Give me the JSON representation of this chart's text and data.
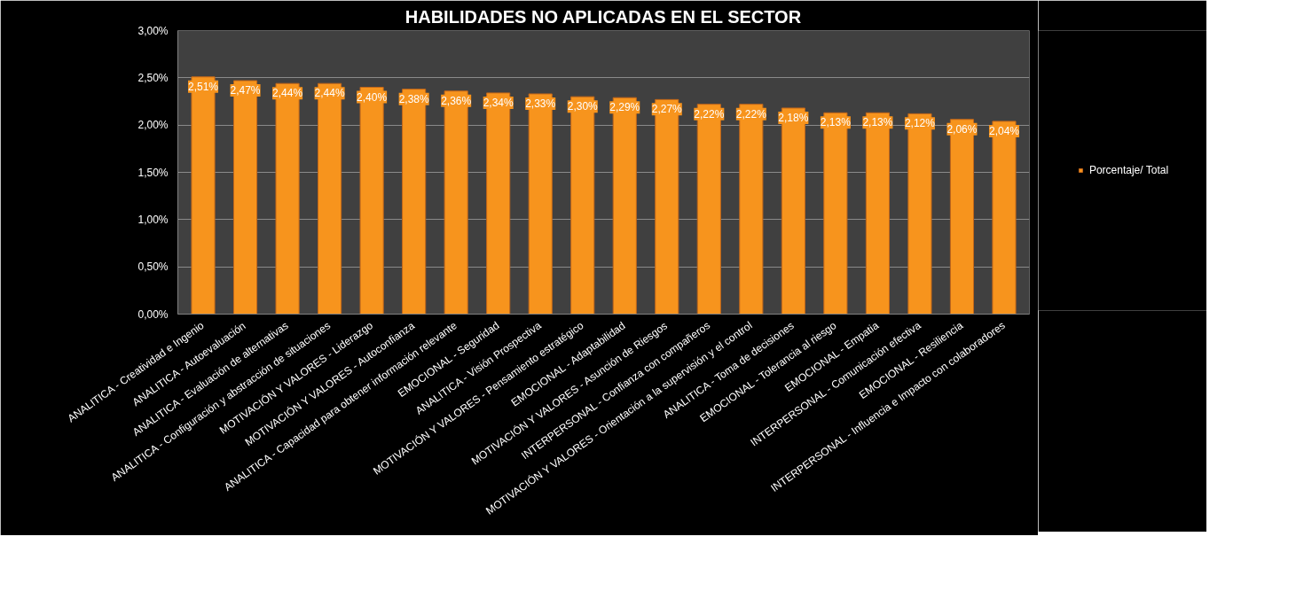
{
  "chart_data": {
    "type": "bar",
    "title": "HABILIDADES NO APLICADAS EN EL SECTOR",
    "categories": [
      "ANALITICA - Creatividad e Ingenio",
      "ANALITICA - Autoevaluación",
      "ANALITICA - Evaluación de alternativas",
      "ANALITICA - Configuración y abstracción de situaciones",
      "MOTIVACIÓN Y VALORES - Liderazgo",
      "MOTIVACIÓN Y VALORES - Autoconfianza",
      "ANALITICA - Capacidad para obtener información relevante",
      "EMOCIONAL - Seguridad",
      "ANALITICA - Visión Prospectiva",
      "MOTIVACIÓN Y VALORES - Pensamiento estratégico",
      "EMOCIONAL - Adaptabilidad",
      "MOTIVACIÓN Y VALORES - Asunción de Riesgos",
      "INTERPERSONAL - Confianza con compañeros",
      "MOTIVACIÓN Y VALORES - Orientación a la supervisión y el control",
      "ANALITICA - Toma de decisiones",
      "EMOCIONAL - Tolerancia al riesgo",
      "EMOCIONAL - Empatia",
      "INTERPERSONAL - Comunicación efectiva",
      "EMOCIONAL - Resiliencia",
      "INTERPERSONAL - Influencia e Impacto con colaboradores"
    ],
    "series": [
      {
        "name": "Porcentaje/ Total",
        "color": "#f7941d",
        "values": [
          2.51,
          2.47,
          2.44,
          2.44,
          2.4,
          2.38,
          2.36,
          2.34,
          2.33,
          2.3,
          2.29,
          2.27,
          2.22,
          2.22,
          2.18,
          2.13,
          2.13,
          2.12,
          2.06,
          2.04
        ],
        "value_labels": [
          "2,51%",
          "2,47%",
          "2,44%",
          "2,44%",
          "2,40%",
          "2,38%",
          "2,36%",
          "2,34%",
          "2,33%",
          "2,30%",
          "2,29%",
          "2,27%",
          "2,22%",
          "2,22%",
          "2,18%",
          "2,13%",
          "2,13%",
          "2,12%",
          "2,06%",
          "2,04%"
        ]
      }
    ],
    "ylim": [
      0,
      3
    ],
    "yticks": [
      {
        "value": 0,
        "label": "0,00%"
      },
      {
        "value": 0.5,
        "label": "0,50%"
      },
      {
        "value": 1,
        "label": "1,00%"
      },
      {
        "value": 1.5,
        "label": "1,50%"
      },
      {
        "value": 2,
        "label": "2,00%"
      },
      {
        "value": 2.5,
        "label": "2,50%"
      },
      {
        "value": 3,
        "label": "3,00%"
      }
    ],
    "grid": "y",
    "legend": "right"
  }
}
